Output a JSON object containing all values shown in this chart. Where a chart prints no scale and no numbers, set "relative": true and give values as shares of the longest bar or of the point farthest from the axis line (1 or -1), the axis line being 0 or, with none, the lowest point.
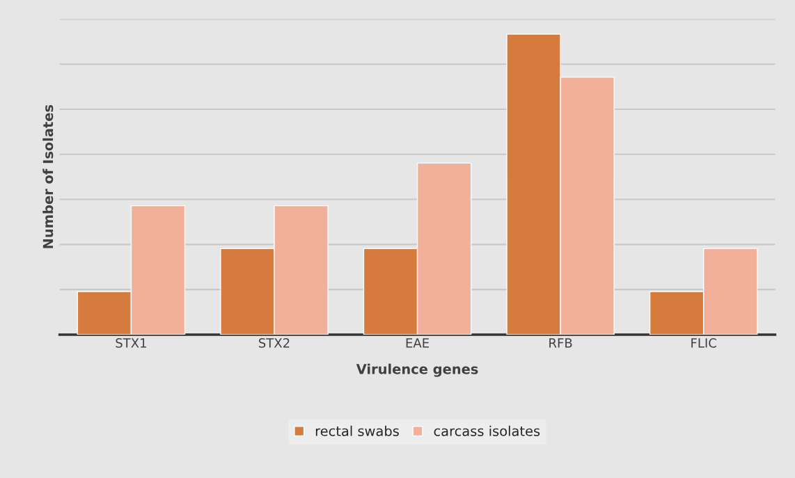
{
  "chart_data": {
    "type": "bar",
    "relative": true,
    "xlabel": "Virulence genes",
    "ylabel": "Number of Isolates",
    "categories": [
      "STX1",
      "STX2",
      "EAE",
      "RFB",
      "FLIC"
    ],
    "series": [
      {
        "name": "rectal swabs",
        "color": "#d67b3e",
        "values": [
          0.143,
          0.286,
          0.286,
          1,
          0.143
        ]
      },
      {
        "name": "carcass isolates",
        "color": "#f2b09a",
        "values": [
          0.429,
          0.429,
          0.571,
          0.857,
          0.286
        ]
      }
    ],
    "grid": "y",
    "legend": "bottom"
  }
}
